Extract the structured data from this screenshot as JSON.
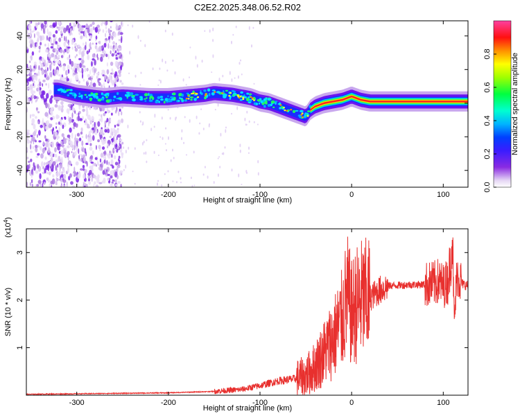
{
  "title": "C2E2.2025.348.06.52.R02",
  "chart_data": [
    {
      "type": "heatmap",
      "xlabel": "Height of straight line (km)",
      "ylabel": "Frequency (Hz)",
      "xlim": [
        -355,
        127
      ],
      "ylim": [
        -50,
        49
      ],
      "xticks": [
        -300,
        -200,
        -100,
        0,
        100
      ],
      "yticks": [
        -40,
        -20,
        0,
        20,
        40
      ],
      "xtick_labels": [
        "-300",
        "-200",
        "-100",
        "0",
        "100"
      ],
      "ytick_labels": [
        "-40",
        "-20",
        "0",
        "20",
        "40"
      ],
      "ridge": {
        "x": [
          -320,
          -300,
          -270,
          -250,
          -220,
          -200,
          -180,
          -160,
          -150,
          -130,
          -110,
          -100,
          -90,
          -80,
          -70,
          -60,
          -50,
          -45,
          -40,
          -30,
          -20,
          -10,
          0,
          10,
          20,
          40,
          60,
          80,
          100,
          110,
          127
        ],
        "y": [
          8,
          5,
          3,
          4,
          3,
          3,
          4,
          5,
          6,
          5,
          3,
          1,
          0,
          -2,
          -4,
          -6,
          -8,
          -4,
          -2,
          0,
          1,
          2,
          4,
          2,
          1,
          1,
          1,
          1,
          1,
          1,
          1
        ]
      },
      "colorbar": {
        "label": "Normalized spectral amplitude",
        "range": [
          0.0,
          1.0
        ],
        "ticks": [
          0.0,
          0.2,
          0.4,
          0.6,
          0.8
        ],
        "tick_labels": [
          "0.0",
          "0.2",
          "0.4",
          "0.6",
          "0.8"
        ]
      }
    },
    {
      "type": "line",
      "xlabel": "Height of straight line (km)",
      "ylabel": "SNR (10 * v/v)",
      "scale_label": "(x10",
      "scale_exp": "4",
      "scale_close": ")",
      "xlim": [
        -355,
        127
      ],
      "ylim": [
        0,
        3.5
      ],
      "xticks": [
        -300,
        -200,
        -100,
        0,
        100
      ],
      "yticks": [
        1,
        2,
        3
      ],
      "xtick_labels": [
        "-300",
        "-200",
        "-100",
        "0",
        "100"
      ],
      "ytick_labels": [
        "1",
        "2",
        "3"
      ],
      "series": [
        {
          "name": "SNR",
          "color": "#e8302e",
          "x": [
            -355,
            -300,
            -250,
            -200,
            -150,
            -120,
            -100,
            -80,
            -60,
            -50,
            -40,
            -30,
            -20,
            -10,
            -5,
            0,
            5,
            10,
            15,
            20,
            30,
            40,
            60,
            80,
            90,
            95,
            100,
            105,
            108,
            110,
            112,
            115,
            120,
            127
          ],
          "y": [
            0.02,
            0.03,
            0.04,
            0.05,
            0.08,
            0.12,
            0.2,
            0.3,
            0.35,
            0.4,
            0.6,
            0.9,
            1.2,
            1.6,
            2.1,
            1.7,
            1.9,
            2.0,
            2.0,
            2.05,
            2.2,
            2.3,
            2.32,
            2.33,
            2.34,
            2.4,
            2.3,
            2.4,
            2.8,
            3.4,
            1.5,
            2.6,
            2.35,
            2.3
          ]
        }
      ]
    }
  ],
  "colors": {
    "line": "#e8302e",
    "axis": "#000000",
    "background": "#ffffff"
  }
}
